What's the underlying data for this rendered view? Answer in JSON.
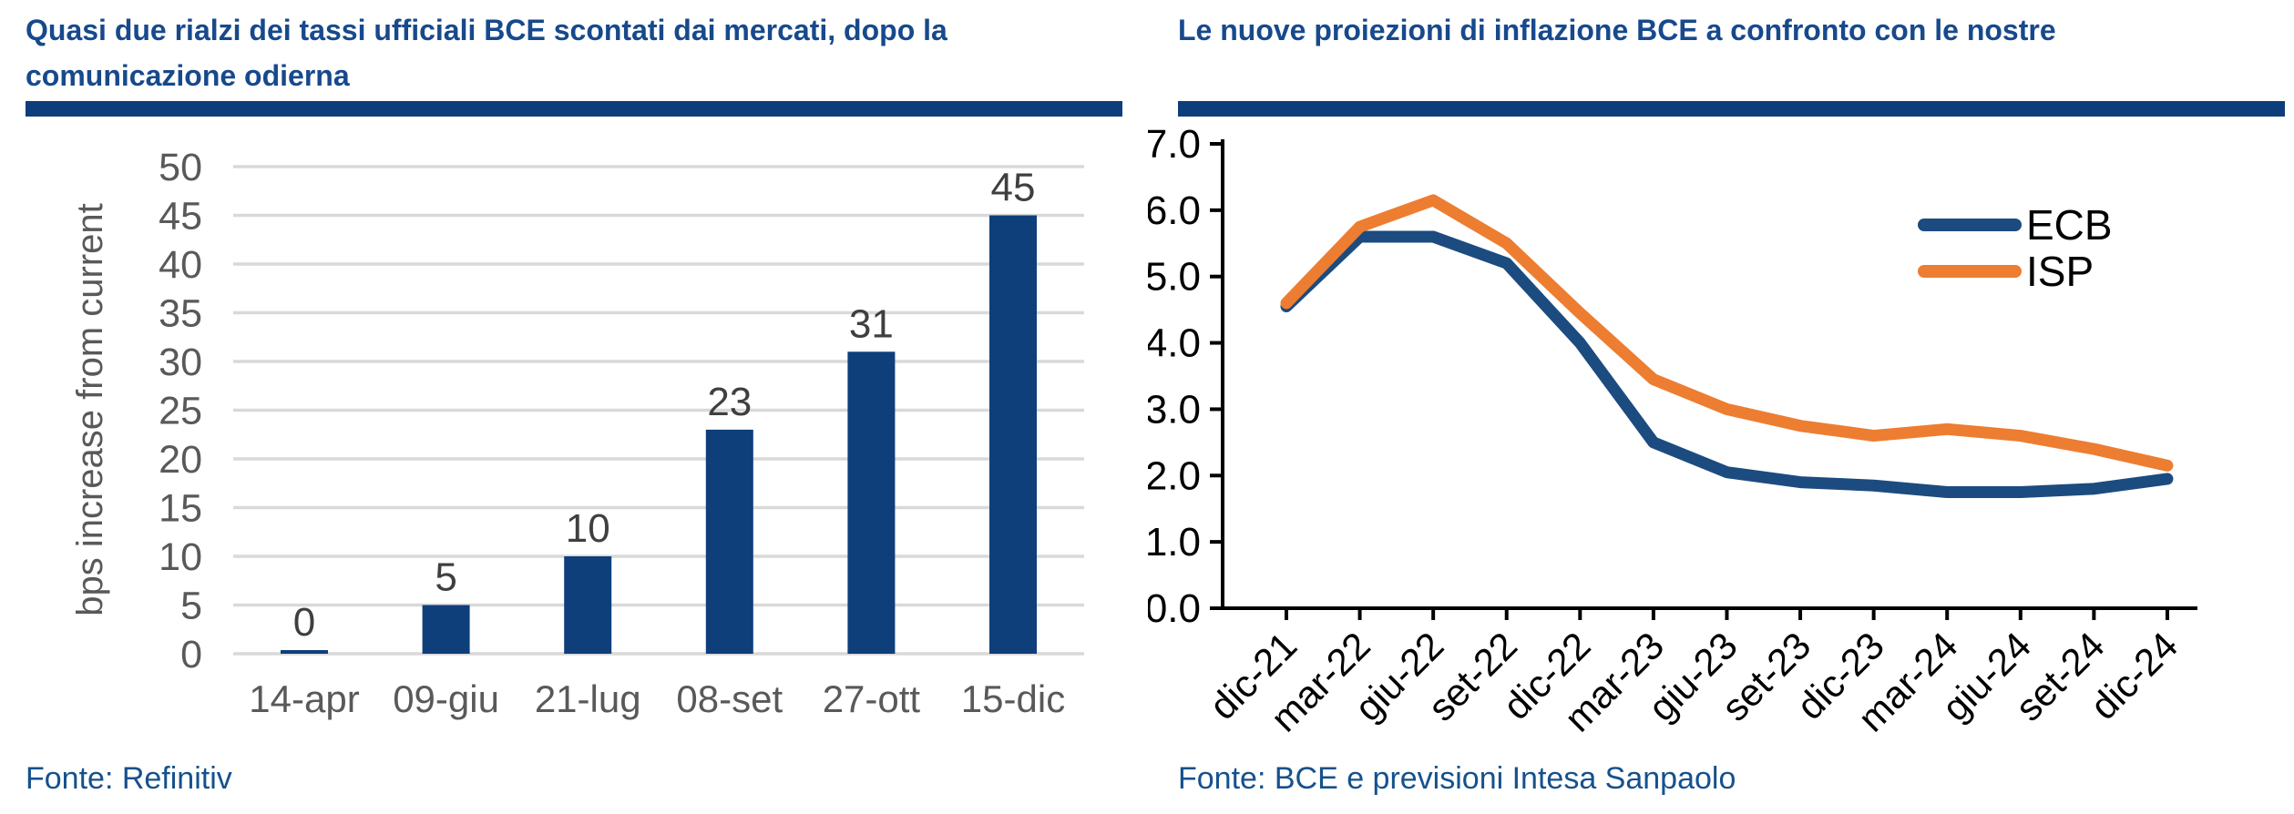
{
  "panels": {
    "left": {
      "title_lines": {
        "0": "Quasi due rialzi dei tassi ufficiali BCE scontati dai mercati, dopo la",
        "1": "comunicazione odierna"
      },
      "source": "Fonte: Refinitiv"
    },
    "right": {
      "title_lines": {
        "0": "Le nuove proiezioni di inflazione BCE a confronto con le nostre",
        "1": ""
      },
      "source": "Fonte: BCE e previsioni Intesa Sanpaolo"
    }
  },
  "chart_data": [
    {
      "type": "bar",
      "title": "Quasi due rialzi dei tassi ufficiali BCE scontati dai mercati, dopo la comunicazione odierna",
      "categories": [
        "14-apr",
        "09-giu",
        "21-lug",
        "08-set",
        "27-ott",
        "15-dic"
      ],
      "values": [
        0,
        5,
        10,
        23,
        31,
        45
      ],
      "data_labels": [
        "0",
        "5",
        "10",
        "23",
        "31",
        "45"
      ],
      "xlabel": "",
      "ylabel": "bps increase from current",
      "ylim": [
        0,
        50
      ],
      "ytick_step": 5,
      "grid": true,
      "legend": [],
      "colors": {
        "bar": "#0E3F7B",
        "gridline": "#D9D9D9",
        "axis_text": "#595959",
        "data_label": "#3F3F3F"
      }
    },
    {
      "type": "line",
      "title": "Le nuove proiezioni di inflazione BCE a confronto con le nostre",
      "x": [
        "dic-21",
        "mar-22",
        "giu-22",
        "set-22",
        "dic-22",
        "mar-23",
        "giu-23",
        "set-23",
        "dic-23",
        "mar-24",
        "giu-24",
        "set-24",
        "dic-24"
      ],
      "series": [
        {
          "name": "ECB",
          "color": "#1C4B7F",
          "values": [
            4.55,
            5.6,
            5.6,
            5.2,
            4.0,
            2.5,
            2.05,
            1.9,
            1.85,
            1.75,
            1.75,
            1.8,
            1.95
          ]
        },
        {
          "name": "ISP",
          "color": "#ED7D31",
          "values": [
            4.6,
            5.75,
            6.15,
            5.5,
            4.45,
            3.45,
            3.0,
            2.75,
            2.6,
            2.7,
            2.6,
            2.4,
            2.15
          ]
        }
      ],
      "xlabel": "",
      "ylabel": "",
      "ylim": [
        0,
        7
      ],
      "ytick_step": 1,
      "ytick_format": "one_decimal",
      "grid": false,
      "legend_position": "upper right",
      "axis_color": "#000000"
    }
  ]
}
